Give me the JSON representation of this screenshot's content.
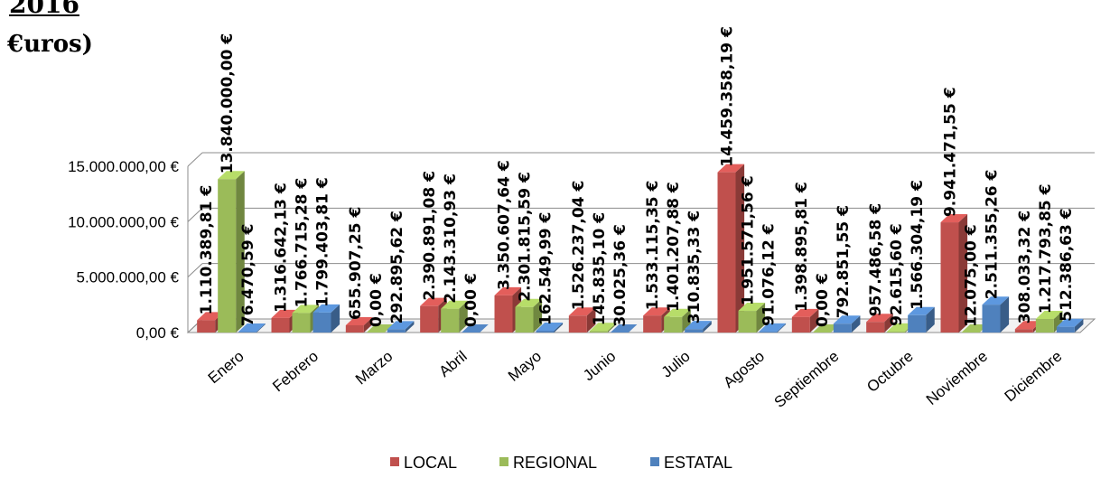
{
  "title_fragment": "2016",
  "subtitle_fragment": "€uros)",
  "chart_data": {
    "type": "bar",
    "categories": [
      "Enero",
      "Febrero",
      "Marzo",
      "Abril",
      "Mayo",
      "Junio",
      "Julio",
      "Agosto",
      "Septiembre",
      "Octubre",
      "Noviembre",
      "Diciembre"
    ],
    "series": [
      {
        "name": "LOCAL",
        "color": "#c0504d",
        "values": [
          1110389.81,
          1316642.13,
          655907.25,
          2390891.08,
          3350607.64,
          1526237.04,
          1533115.35,
          14459358.19,
          1398895.81,
          957486.58,
          9941471.55,
          308033.32
        ],
        "labels": [
          "1.110.389,81 €",
          "1.316.642,13 €",
          "655.907,25 €",
          "2.390.891,08 €",
          "3.350.607,64 €",
          "1.526.237,04 €",
          "1.533.115,35 €",
          "14.459.358,19 €",
          "1.398.895,81 €",
          "957.486,58 €",
          "9.941.471,55 €",
          "308.033,32 €"
        ]
      },
      {
        "name": "REGIONAL",
        "color": "#9bbb59",
        "values": [
          13840000.0,
          1766715.28,
          0,
          2143310.93,
          2301815.59,
          145835.1,
          1401207.88,
          1951571.56,
          0,
          92615.6,
          12075.0,
          1217793.85
        ],
        "labels": [
          "13.840.000,00 €",
          "1.766.715,28 €",
          "0,00 €",
          "2.143.310,93 €",
          "2.301.815,59 €",
          "145.835,10 €",
          "1.401.207,88 €",
          "1.951.571,56 €",
          "0,00 €",
          "92.615,60 €",
          "12.075,00 €",
          "1.217.793,85 €"
        ]
      },
      {
        "name": "ESTATAL",
        "color": "#4f81bd",
        "values": [
          76470.59,
          1799403.81,
          292895.62,
          0,
          162549.99,
          30025.36,
          310835.33,
          91076.12,
          792851.55,
          1566304.19,
          2511355.26,
          512386.63
        ],
        "labels": [
          "76.470,59 €",
          "1.799.403,81 €",
          "292.895,62 €",
          "0,00 €",
          "162.549,99 €",
          "30.025,36 €",
          "310.835,33 €",
          "91.076,12 €",
          "792.851,55 €",
          "1.566.304,19 €",
          "2.511.355,26 €",
          "512.386,63 €"
        ]
      }
    ],
    "yticks": [
      "0,00 €",
      "5.000.000,00 €",
      "10.000.000,00 €",
      "15.000.000,00 €"
    ],
    "ytick_values": [
      0,
      5000000,
      10000000,
      15000000
    ],
    "ylim": [
      0,
      15000000
    ],
    "legend_position": "bottom",
    "grid": true
  }
}
